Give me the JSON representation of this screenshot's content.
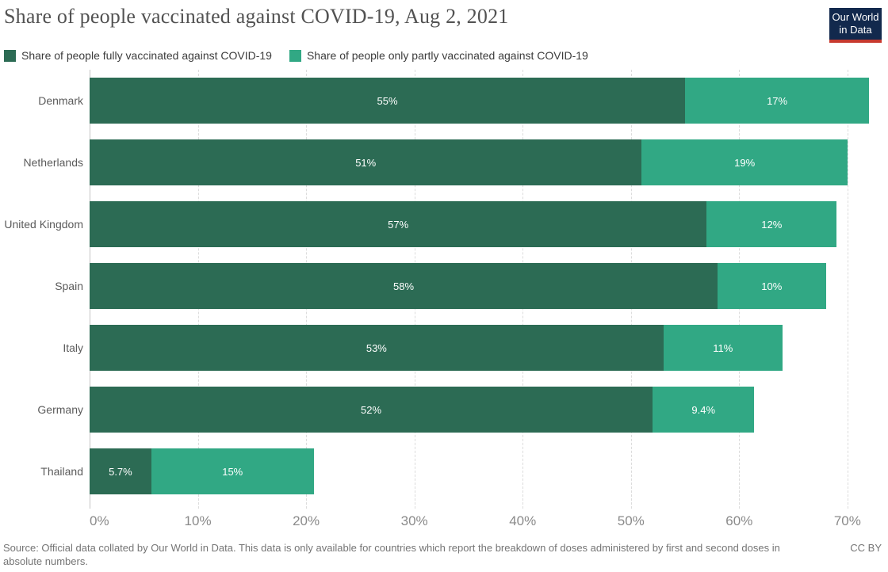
{
  "header": {
    "title": "Share of people vaccinated against COVID-19, Aug 2, 2021"
  },
  "logo": {
    "line1": "Our World",
    "line2": "in Data",
    "bg_color": "#12294d",
    "accent_color": "#c7392e"
  },
  "legend": {
    "items": [
      {
        "label": "Share of people fully vaccinated against COVID-19",
        "color": "#2c6b54"
      },
      {
        "label": "Share of people only partly vaccinated against COVID-19",
        "color": "#31a884"
      }
    ]
  },
  "chart_data": {
    "type": "bar",
    "orientation": "horizontal",
    "stacked": true,
    "title": "Share of people vaccinated against COVID-19, Aug 2, 2021",
    "categories": [
      "Denmark",
      "Netherlands",
      "United Kingdom",
      "Spain",
      "Italy",
      "Germany",
      "Thailand"
    ],
    "series": [
      {
        "name": "Share of people fully vaccinated against COVID-19",
        "color": "#2c6b54",
        "values": [
          55,
          51,
          57,
          58,
          53,
          52,
          5.7
        ],
        "labels": [
          "55%",
          "51%",
          "57%",
          "58%",
          "53%",
          "52%",
          "5.7%"
        ]
      },
      {
        "name": "Share of people only partly vaccinated against COVID-19",
        "color": "#31a884",
        "values": [
          17,
          19,
          12,
          10,
          11,
          9.4,
          15
        ],
        "labels": [
          "17%",
          "19%",
          "12%",
          "10%",
          "11%",
          "9.4%",
          "15%"
        ]
      }
    ],
    "xticks": [
      0,
      10,
      20,
      30,
      40,
      50,
      60,
      70
    ],
    "xtick_labels": [
      "0%",
      "10%",
      "20%",
      "30%",
      "40%",
      "50%",
      "60%",
      "70%"
    ],
    "xlim": [
      0,
      72.5
    ],
    "grid": "vertical-dashed",
    "legend_position": "top"
  },
  "footer": {
    "source": "Source: Official data collated by Our World in Data. This data is only available for countries which report the breakdown of doses administered by first and second doses in absolute numbers.",
    "license": "CC BY"
  }
}
